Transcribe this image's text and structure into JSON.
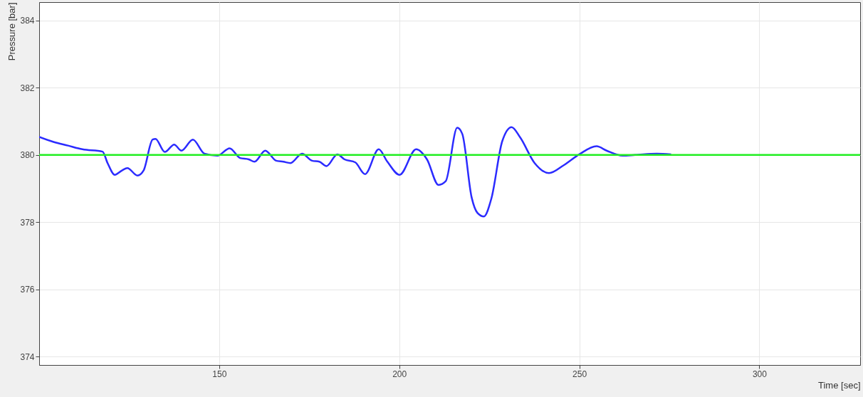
{
  "chart_data": {
    "type": "line",
    "xlabel": "Time [sec]",
    "ylabel": "Pressure [bar]",
    "xlim": [
      100,
      328
    ],
    "ylim": [
      373.75,
      384.55
    ],
    "xticks": [
      150,
      200,
      250,
      300
    ],
    "yticks": [
      374,
      376,
      378,
      380,
      382,
      384
    ],
    "grid": true,
    "marker": "none",
    "line_style": "solid",
    "series": [
      {
        "color": "#2b2bff",
        "x": [
          100,
          104,
          108,
          112,
          117.6,
          119,
          121,
          123,
          124.5,
          127.3,
          129,
          131.5,
          132.3,
          134.9,
          137.5,
          139.5,
          142.7,
          145.9,
          149.5,
          152.9,
          155.8,
          158.2,
          159.8,
          162.8,
          165.8,
          167.8,
          169.8,
          173,
          175.8,
          177.8,
          179.8,
          182.8,
          184.8,
          187.8,
          190.5,
          194.3,
          196.7,
          200.1,
          204.7,
          207.7,
          210.9,
          212.9,
          216.1,
          217.5,
          220.1,
          221.7,
          223.5,
          225.6,
          228.6,
          231.2,
          233.6,
          237.6,
          241.6,
          245.6,
          250,
          254.8,
          257.6,
          262,
          265.5,
          271.5,
          275.5
        ],
        "values": [
          380.54,
          380.39,
          380.28,
          380.17,
          380.1,
          379.76,
          379.41,
          379.54,
          379.61,
          379.39,
          379.54,
          380.46,
          380.48,
          380.09,
          380.31,
          380.13,
          380.46,
          380.04,
          379.98,
          380.2,
          379.91,
          379.87,
          379.8,
          380.13,
          379.83,
          379.8,
          379.76,
          380.04,
          379.83,
          379.8,
          379.67,
          380.02,
          379.87,
          379.78,
          379.43,
          380.17,
          379.8,
          379.41,
          380.17,
          379.87,
          379.11,
          379.22,
          380.81,
          380.63,
          378.74,
          378.28,
          378.17,
          378.71,
          380.41,
          380.83,
          380.52,
          379.76,
          379.46,
          379.69,
          380.02,
          380.26,
          380.13,
          379.98,
          380,
          380.04,
          380.02
        ]
      }
    ],
    "ref_lines": [
      {
        "axis": "y",
        "value": 380,
        "color": "#22ee22",
        "line_style": "solid"
      }
    ]
  }
}
